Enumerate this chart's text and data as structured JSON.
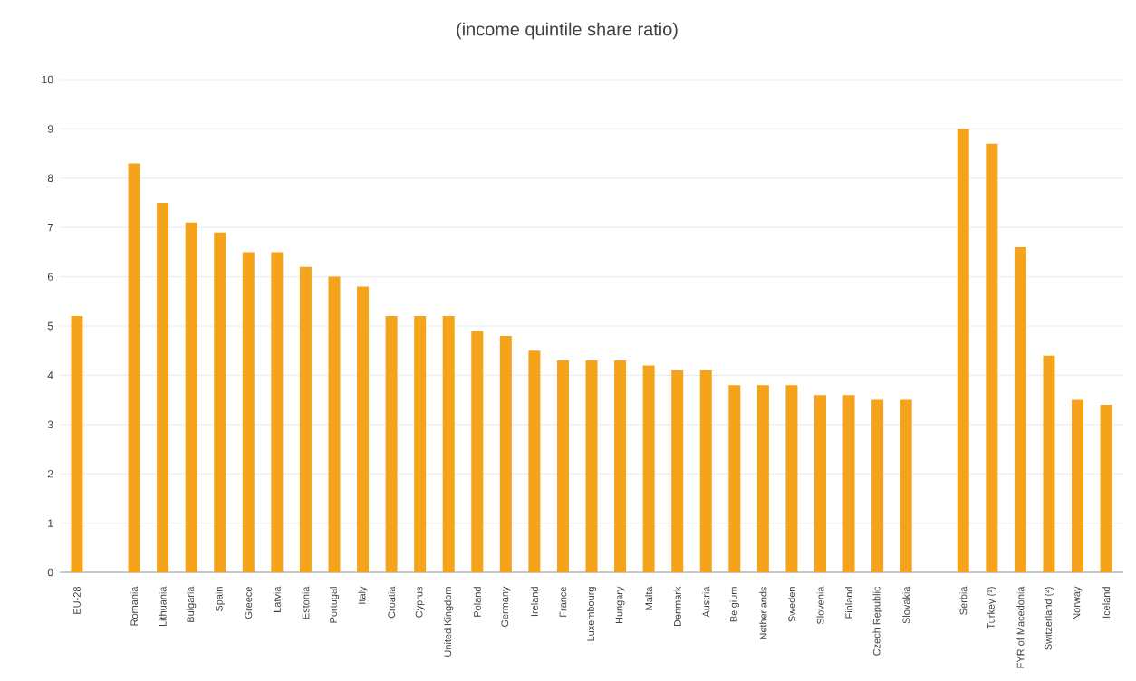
{
  "chart_data": {
    "type": "bar",
    "subtitle": "(income quintile share ratio)",
    "categories": [
      "EU-28",
      null,
      "Romania",
      "Lithuania",
      "Bulgaria",
      "Spain",
      "Greece",
      "Latvia",
      "Estonia",
      "Portugal",
      "Italy",
      "Croatia",
      "Cyprus",
      "United Kingdom",
      "Poland",
      "Germany",
      "Ireland",
      "France",
      "Luxembourg",
      "Hungary",
      "Malta",
      "Denmark",
      "Austria",
      "Belgium",
      "Netherlands",
      "Sweden",
      "Slovenia",
      "Finland",
      "Czech Republic",
      "Slovakia",
      null,
      "Serbia",
      "Turkey (¹)",
      "FYR of Macedonia",
      "Switzerland (²)",
      "Norway",
      "Iceland"
    ],
    "values": [
      5.2,
      null,
      8.3,
      7.5,
      7.1,
      6.9,
      6.5,
      6.5,
      6.2,
      6.0,
      5.8,
      5.2,
      5.2,
      5.2,
      4.9,
      4.8,
      4.5,
      4.3,
      4.3,
      4.3,
      4.2,
      4.1,
      4.1,
      3.8,
      3.8,
      3.8,
      3.6,
      3.6,
      3.5,
      3.5,
      null,
      9.0,
      8.7,
      6.6,
      4.4,
      3.5,
      3.4
    ],
    "color": "#f5a31a",
    "ylim": [
      0,
      10
    ],
    "yticks": [
      0,
      1,
      2,
      3,
      4,
      5,
      6,
      7,
      8,
      9,
      10
    ],
    "grid": "y"
  }
}
